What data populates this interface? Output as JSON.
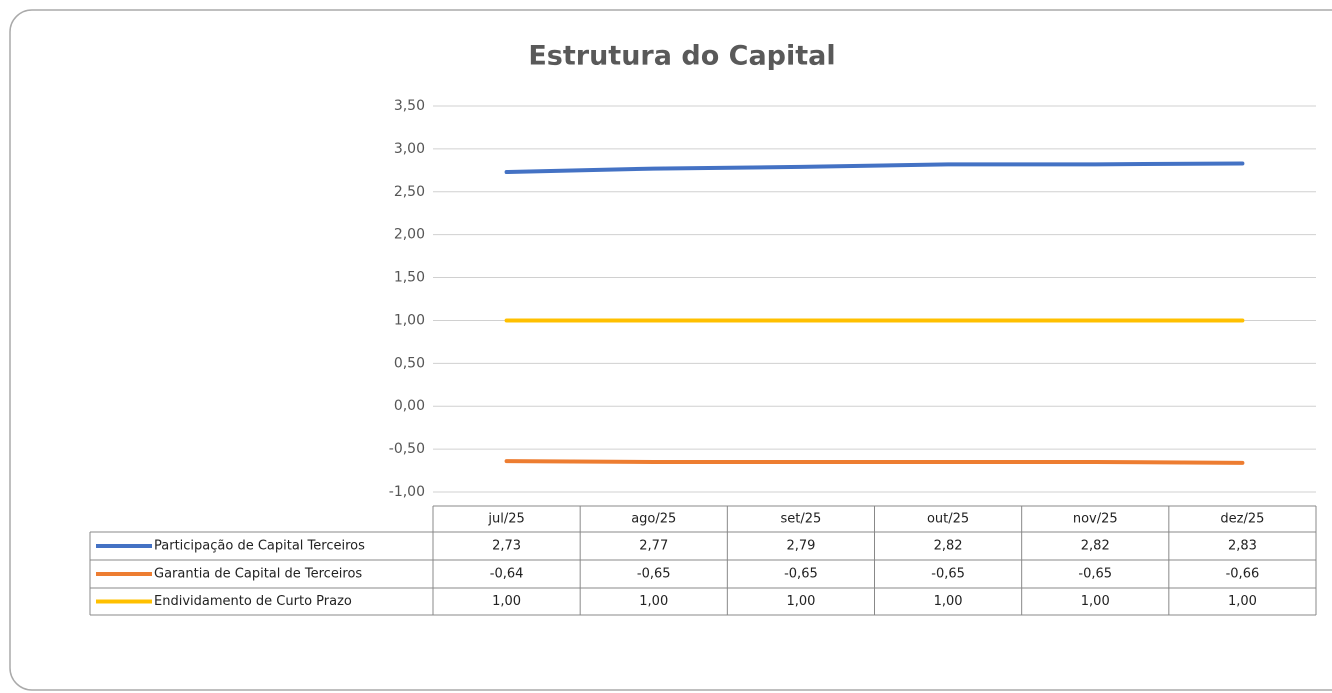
{
  "chart_data": {
    "type": "line",
    "title": "Estrutura do Capital",
    "categories": [
      "jul/25",
      "ago/25",
      "set/25",
      "out/25",
      "nov/25",
      "dez/25"
    ],
    "series": [
      {
        "name": "Participação de Capital Terceiros",
        "color": "#4472c4",
        "values": [
          2.73,
          2.77,
          2.79,
          2.82,
          2.82,
          2.83
        ],
        "value_labels": [
          "2,73",
          "2,77",
          "2,79",
          "2,82",
          "2,82",
          "2,83"
        ]
      },
      {
        "name": "Garantia de Capital de Terceiros",
        "color": "#ed7d31",
        "values": [
          -0.64,
          -0.65,
          -0.65,
          -0.65,
          -0.65,
          -0.66
        ],
        "value_labels": [
          "-0,64",
          "-0,65",
          "-0,65",
          "-0,65",
          "-0,65",
          "-0,66"
        ]
      },
      {
        "name": "Endividamento de Curto Prazo",
        "color": "#ffc000",
        "values": [
          1.0,
          1.0,
          1.0,
          1.0,
          1.0,
          1.0
        ],
        "value_labels": [
          "1,00",
          "1,00",
          "1,00",
          "1,00",
          "1,00",
          "1,00"
        ]
      }
    ],
    "ylim": [
      -1,
      3.5
    ],
    "yticks": [
      {
        "value": -1,
        "label": "-1,00"
      },
      {
        "value": -0.5,
        "label": "-0,50"
      },
      {
        "value": 0,
        "label": "0,00"
      },
      {
        "value": 0.5,
        "label": "0,50"
      },
      {
        "value": 1,
        "label": "1,00"
      },
      {
        "value": 1.5,
        "label": "1,50"
      },
      {
        "value": 2,
        "label": "2,00"
      },
      {
        "value": 2.5,
        "label": "2,50"
      },
      {
        "value": 3,
        "label": "3,00"
      },
      {
        "value": 3.5,
        "label": "3,50"
      }
    ],
    "grid": true
  }
}
